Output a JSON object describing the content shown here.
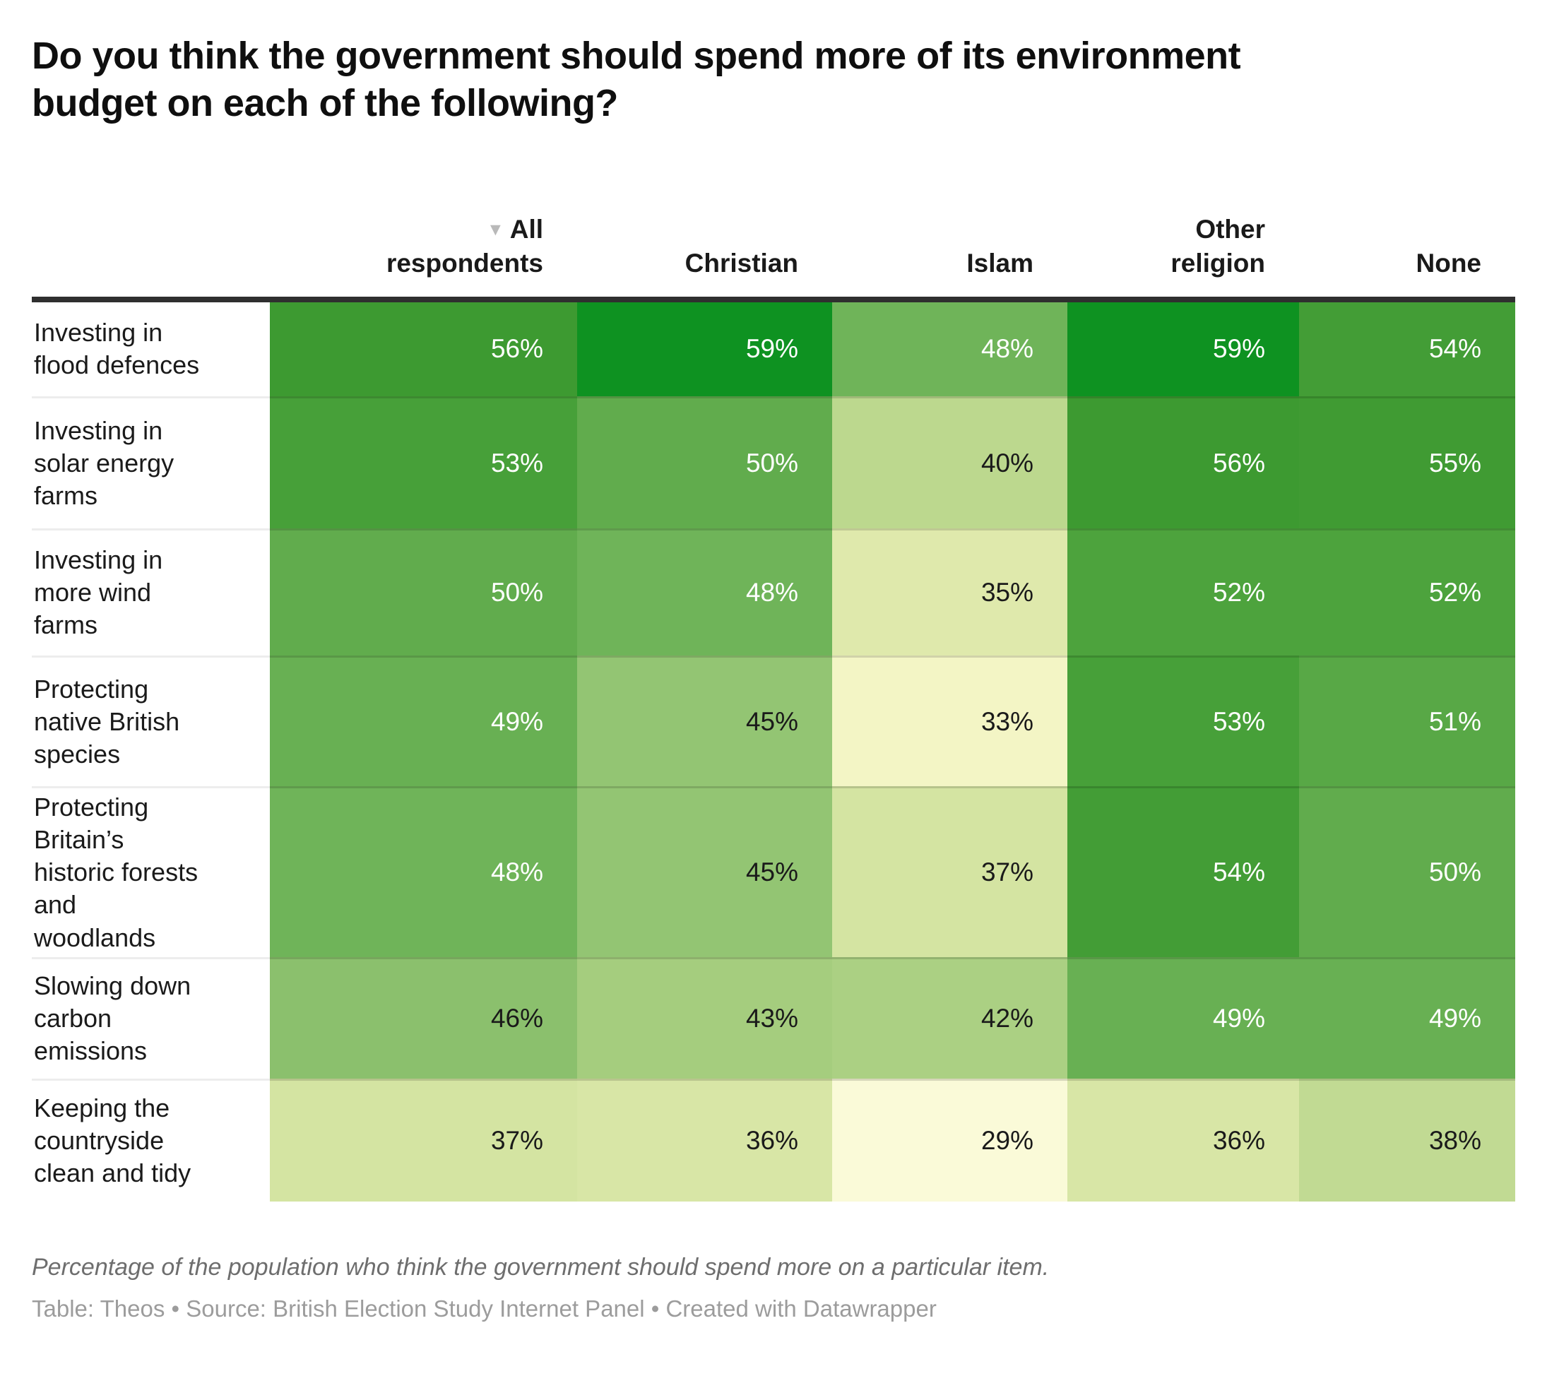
{
  "title": "Do you think the government should spend more of its environment\nbudget on each of the following?",
  "header": {
    "sort_icon": "▼",
    "columns": [
      {
        "label": "All\nrespondents"
      },
      {
        "label": "Christian"
      },
      {
        "label": "Islam"
      },
      {
        "label": "Other\nreligion"
      },
      {
        "label": "None"
      }
    ]
  },
  "rows": [
    {
      "label": "Investing in\nflood defences",
      "cells": [
        {
          "display": "56%",
          "bg": "#3d9a31",
          "fg": "#ffffff"
        },
        {
          "display": "59%",
          "bg": "#0e9221",
          "fg": "#ffffff"
        },
        {
          "display": "48%",
          "bg": "#6fb459",
          "fg": "#ffffff"
        },
        {
          "display": "59%",
          "bg": "#0e9221",
          "fg": "#ffffff"
        },
        {
          "display": "54%",
          "bg": "#439d36",
          "fg": "#ffffff"
        }
      ]
    },
    {
      "label": "Investing in\nsolar energy\nfarms",
      "cells": [
        {
          "display": "53%",
          "bg": "#47a039",
          "fg": "#ffffff"
        },
        {
          "display": "50%",
          "bg": "#61ac4d",
          "fg": "#ffffff"
        },
        {
          "display": "40%",
          "bg": "#bcd88e",
          "fg": "#1a1a1a"
        },
        {
          "display": "56%",
          "bg": "#3d9a31",
          "fg": "#ffffff"
        },
        {
          "display": "55%",
          "bg": "#409b33",
          "fg": "#ffffff"
        }
      ]
    },
    {
      "label": "Investing in\nmore wind\nfarms",
      "cells": [
        {
          "display": "50%",
          "bg": "#61ac4d",
          "fg": "#ffffff"
        },
        {
          "display": "48%",
          "bg": "#6fb459",
          "fg": "#ffffff"
        },
        {
          "display": "35%",
          "bg": "#dfe9ac",
          "fg": "#1a1a1a"
        },
        {
          "display": "52%",
          "bg": "#4da33d",
          "fg": "#ffffff"
        },
        {
          "display": "52%",
          "bg": "#4da33d",
          "fg": "#ffffff"
        }
      ]
    },
    {
      "label": "Protecting\nnative British\nspecies",
      "cells": [
        {
          "display": "49%",
          "bg": "#68b053",
          "fg": "#ffffff"
        },
        {
          "display": "45%",
          "bg": "#93c573",
          "fg": "#1a1a1a"
        },
        {
          "display": "33%",
          "bg": "#f3f5c5",
          "fg": "#1a1a1a"
        },
        {
          "display": "53%",
          "bg": "#47a039",
          "fg": "#ffffff"
        },
        {
          "display": "51%",
          "bg": "#58a846",
          "fg": "#ffffff"
        }
      ]
    },
    {
      "label": "Protecting\nBritain’s\nhistoric forests\nand\nwoodlands",
      "cells": [
        {
          "display": "48%",
          "bg": "#6fb459",
          "fg": "#ffffff"
        },
        {
          "display": "45%",
          "bg": "#93c573",
          "fg": "#1a1a1a"
        },
        {
          "display": "37%",
          "bg": "#d4e4a2",
          "fg": "#1a1a1a"
        },
        {
          "display": "54%",
          "bg": "#439d36",
          "fg": "#ffffff"
        },
        {
          "display": "50%",
          "bg": "#61ac4d",
          "fg": "#ffffff"
        }
      ]
    },
    {
      "label": "Slowing down\ncarbon\nemissions",
      "cells": [
        {
          "display": "46%",
          "bg": "#8bc06d",
          "fg": "#1a1a1a"
        },
        {
          "display": "43%",
          "bg": "#a5cd7e",
          "fg": "#1a1a1a"
        },
        {
          "display": "42%",
          "bg": "#abd083",
          "fg": "#1a1a1a"
        },
        {
          "display": "49%",
          "bg": "#68b053",
          "fg": "#ffffff"
        },
        {
          "display": "49%",
          "bg": "#68b053",
          "fg": "#ffffff"
        }
      ]
    },
    {
      "label": "Keeping the\ncountryside\nclean and tidy",
      "cells": [
        {
          "display": "37%",
          "bg": "#d4e4a2",
          "fg": "#1a1a1a"
        },
        {
          "display": "36%",
          "bg": "#d8e6a6",
          "fg": "#1a1a1a"
        },
        {
          "display": "29%",
          "bg": "#fafad8",
          "fg": "#1a1a1a"
        },
        {
          "display": "36%",
          "bg": "#d8e6a6",
          "fg": "#1a1a1a"
        },
        {
          "display": "38%",
          "bg": "#c1da93",
          "fg": "#1a1a1a"
        }
      ]
    }
  ],
  "footer": {
    "note": "Percentage of the population who think the government should spend more on a particular item.",
    "credit": "Table: Theos • Source: British Election Study Internet Panel • Created with Datawrapper"
  },
  "chart_data": {
    "type": "heatmap",
    "title": "Do you think the government should spend more of its environment budget on each of the following?",
    "columns": [
      "All respondents",
      "Christian",
      "Islam",
      "Other religion",
      "None"
    ],
    "row_categories": [
      "Investing in flood defences",
      "Investing in solar energy farms",
      "Investing in more wind farms",
      "Protecting native British species",
      "Protecting Britain’s historic forests and woodlands",
      "Slowing down carbon emissions",
      "Keeping the countryside clean and tidy"
    ],
    "values_percent": [
      [
        56,
        59,
        48,
        59,
        54
      ],
      [
        53,
        50,
        40,
        56,
        55
      ],
      [
        50,
        48,
        35,
        52,
        52
      ],
      [
        49,
        45,
        33,
        53,
        51
      ],
      [
        48,
        45,
        37,
        54,
        50
      ],
      [
        46,
        43,
        42,
        49,
        49
      ],
      [
        37,
        36,
        29,
        36,
        38
      ]
    ],
    "unit": "%",
    "sorted_by": "All respondents",
    "sort_order": "descending",
    "color_scale": {
      "type": "continuous",
      "domain": [
        29,
        59
      ],
      "low": "#fafad8",
      "mid": "#6fb459",
      "high": "#0e9221"
    },
    "note": "Percentage of the population who think the government should spend more on a particular item.",
    "credit": "Table: Theos • Source: British Election Study Internet Panel • Created with Datawrapper"
  }
}
